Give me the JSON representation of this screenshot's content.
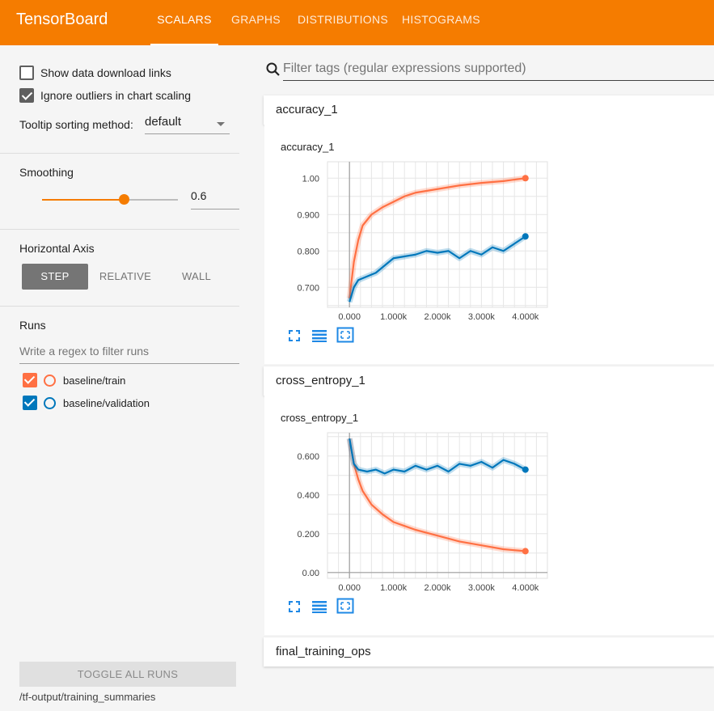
{
  "header": {
    "brand": "TensorBoard",
    "tabs": [
      {
        "label": "SCALARS",
        "active": true
      },
      {
        "label": "GRAPHS",
        "active": false
      },
      {
        "label": "DISTRIBUTIONS",
        "active": false
      },
      {
        "label": "HISTOGRAMS",
        "active": false
      }
    ]
  },
  "sidebar": {
    "show_download_links": {
      "label": "Show data download links",
      "checked": false
    },
    "ignore_outliers": {
      "label": "Ignore outliers in chart scaling",
      "checked": true
    },
    "tooltip_sorting": {
      "label": "Tooltip sorting method:",
      "value": "default"
    },
    "smoothing": {
      "title": "Smoothing",
      "value": "0.6",
      "fraction": 0.6
    },
    "horizontal_axis": {
      "title": "Horizontal Axis",
      "options": [
        {
          "label": "STEP",
          "active": true
        },
        {
          "label": "RELATIVE",
          "active": false
        },
        {
          "label": "WALL",
          "active": false
        }
      ]
    },
    "runs": {
      "title": "Runs",
      "filter_placeholder": "Write a regex to filter runs",
      "items": [
        {
          "label": "baseline/train",
          "color": "#ff7043",
          "checked": true
        },
        {
          "label": "baseline/validation",
          "color": "#0077bb",
          "checked": true
        }
      ]
    },
    "toggle_all_label": "TOGGLE ALL RUNS",
    "logdir": "/tf-output/training_summaries"
  },
  "main": {
    "filter_placeholder": "Filter tags (regular expressions supported)",
    "categories": [
      {
        "name": "accuracy_1"
      },
      {
        "name": "cross_entropy_1"
      },
      {
        "name": "final_training_ops"
      }
    ],
    "icons": [
      "fullscreen-icon",
      "log-scale-icon",
      "fit-domain-icon"
    ]
  },
  "chart_data": [
    {
      "type": "line",
      "title": "accuracy_1",
      "x_ticks": [
        "0.000",
        "1.000k",
        "2.000k",
        "3.000k",
        "4.000k"
      ],
      "y_ticks": [
        "0.700",
        "0.800",
        "0.900",
        "1.00"
      ],
      "xlim": [
        -500,
        4500
      ],
      "ylim": [
        0.645,
        1.045
      ],
      "series": [
        {
          "name": "baseline/train",
          "color": "#ff7043",
          "x": [
            0,
            100,
            200,
            300,
            500,
            750,
            1000,
            1250,
            1500,
            2000,
            2500,
            3000,
            3500,
            4000
          ],
          "y": [
            0.67,
            0.77,
            0.83,
            0.87,
            0.9,
            0.92,
            0.935,
            0.95,
            0.96,
            0.97,
            0.98,
            0.987,
            0.992,
            1.0
          ]
        },
        {
          "name": "baseline/validation",
          "color": "#0077bb",
          "x": [
            0,
            100,
            200,
            400,
            600,
            800,
            1000,
            1250,
            1500,
            1750,
            2000,
            2250,
            2500,
            2750,
            3000,
            3250,
            3500,
            3750,
            4000
          ],
          "y": [
            0.66,
            0.7,
            0.72,
            0.73,
            0.74,
            0.76,
            0.78,
            0.785,
            0.79,
            0.8,
            0.795,
            0.8,
            0.78,
            0.8,
            0.79,
            0.81,
            0.8,
            0.82,
            0.84
          ]
        }
      ]
    },
    {
      "type": "line",
      "title": "cross_entropy_1",
      "x_ticks": [
        "0.000",
        "1.000k",
        "2.000k",
        "3.000k",
        "4.000k"
      ],
      "y_ticks": [
        "0.00",
        "0.200",
        "0.400",
        "0.600"
      ],
      "xlim": [
        -500,
        4500
      ],
      "ylim": [
        -0.03,
        0.72
      ],
      "series": [
        {
          "name": "baseline/train",
          "color": "#ff7043",
          "x": [
            0,
            100,
            200,
            300,
            500,
            750,
            1000,
            1250,
            1500,
            2000,
            2500,
            3000,
            3500,
            4000
          ],
          "y": [
            0.69,
            0.56,
            0.48,
            0.42,
            0.35,
            0.3,
            0.26,
            0.24,
            0.22,
            0.19,
            0.16,
            0.14,
            0.12,
            0.11
          ]
        },
        {
          "name": "baseline/validation",
          "color": "#0077bb",
          "x": [
            0,
            100,
            200,
            400,
            600,
            800,
            1000,
            1250,
            1500,
            1750,
            2000,
            2250,
            2500,
            2750,
            3000,
            3250,
            3500,
            3750,
            4000
          ],
          "y": [
            0.69,
            0.56,
            0.53,
            0.52,
            0.53,
            0.51,
            0.53,
            0.52,
            0.55,
            0.53,
            0.55,
            0.52,
            0.56,
            0.55,
            0.57,
            0.54,
            0.58,
            0.56,
            0.53
          ]
        }
      ]
    }
  ]
}
